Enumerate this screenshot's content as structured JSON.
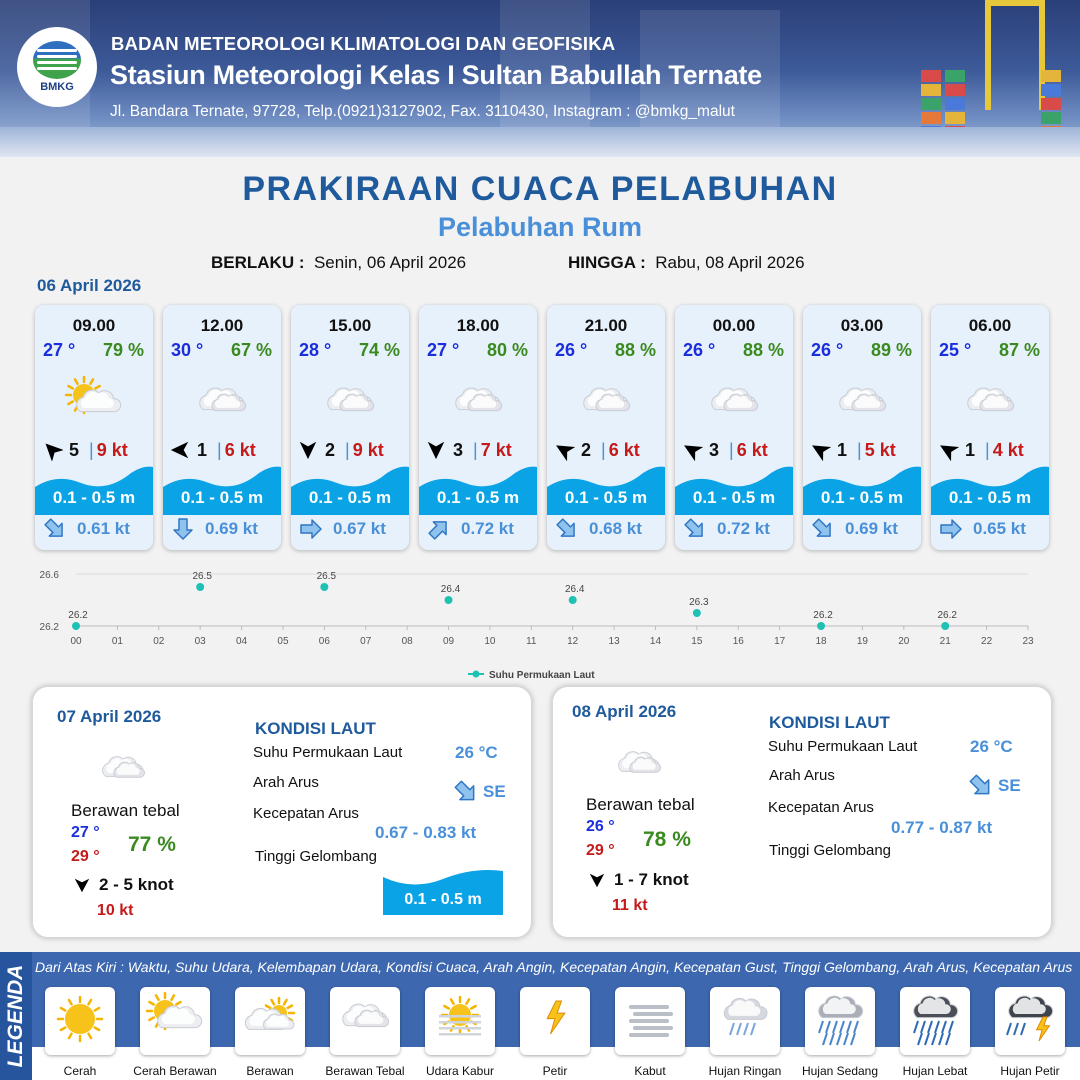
{
  "header": {
    "logo_text": "BMKG",
    "organization": "BADAN METEOROLOGI KLIMATOLOGI DAN GEOFISIKA",
    "station": "Stasiun Meteorologi Kelas I Sultan Babullah Ternate",
    "address": "Jl. Bandara Ternate, 97728, Telp.(0921)3127902, Fax. 3110430, Instagram : @bmkg_malut"
  },
  "title": "PRAKIRAAN CUACA PELABUHAN",
  "subtitle": "Pelabuhan Rum",
  "validity": {
    "from_label": "BERLAKU :",
    "from_value": "Senin, 06 April 2026",
    "to_label": "HINGGA :",
    "to_value": "Rabu, 08 April 2026"
  },
  "day1": {
    "date": "06 April 2026",
    "hours": [
      {
        "time": "09.00",
        "temp": "27 °",
        "hum": "79 %",
        "icon": "partly-cloudy-sun-icon",
        "wind_dir_deg": 315,
        "wind": "5",
        "gust": "9 kt",
        "wave": "0.1 - 0.5 m",
        "current_dir_deg": 135,
        "current": "0.61 kt"
      },
      {
        "time": "12.00",
        "temp": "30 °",
        "hum": "67 %",
        "icon": "thick-cloud-icon",
        "wind_dir_deg": 270,
        "wind": "1",
        "gust": "6 kt",
        "wave": "0.1 - 0.5 m",
        "current_dir_deg": 180,
        "current": "0.69 kt"
      },
      {
        "time": "15.00",
        "temp": "28 °",
        "hum": "74 %",
        "icon": "thick-cloud-icon",
        "wind_dir_deg": 180,
        "wind": "2",
        "gust": "9 kt",
        "wave": "0.1 - 0.5 m",
        "current_dir_deg": 90,
        "current": "0.67 kt"
      },
      {
        "time": "18.00",
        "temp": "27 °",
        "hum": "80 %",
        "icon": "thick-cloud-icon",
        "wind_dir_deg": 180,
        "wind": "3",
        "gust": "7 kt",
        "wave": "0.1 - 0.5 m",
        "current_dir_deg": 45,
        "current": "0.72 kt"
      },
      {
        "time": "21.00",
        "temp": "26 °",
        "hum": "88 %",
        "icon": "thick-cloud-icon",
        "wind_dir_deg": 300,
        "wind": "2",
        "gust": "6 kt",
        "wave": "0.1 - 0.5 m",
        "current_dir_deg": 135,
        "current": "0.68 kt"
      },
      {
        "time": "00.00",
        "temp": "26 °",
        "hum": "88 %",
        "icon": "thick-cloud-icon",
        "wind_dir_deg": 300,
        "wind": "3",
        "gust": "6 kt",
        "wave": "0.1 - 0.5 m",
        "current_dir_deg": 135,
        "current": "0.72 kt"
      },
      {
        "time": "03.00",
        "temp": "26 °",
        "hum": "89 %",
        "icon": "thick-cloud-icon",
        "wind_dir_deg": 300,
        "wind": "1",
        "gust": "5 kt",
        "wave": "0.1 - 0.5 m",
        "current_dir_deg": 135,
        "current": "0.69 kt"
      },
      {
        "time": "06.00",
        "temp": "25 °",
        "hum": "87 %",
        "icon": "thick-cloud-icon",
        "wind_dir_deg": 300,
        "wind": "1",
        "gust": "4 kt",
        "wave": "0.1 - 0.5 m",
        "current_dir_deg": 90,
        "current": "0.65 kt"
      }
    ]
  },
  "chart_data": {
    "type": "scatter",
    "x": [
      "00",
      "01",
      "02",
      "03",
      "04",
      "05",
      "06",
      "07",
      "08",
      "09",
      "10",
      "11",
      "12",
      "13",
      "14",
      "15",
      "16",
      "17",
      "18",
      "19",
      "20",
      "21",
      "22",
      "23"
    ],
    "points": [
      {
        "x": 0,
        "y": 26.2
      },
      {
        "x": 3,
        "y": 26.5
      },
      {
        "x": 6,
        "y": 26.5
      },
      {
        "x": 9,
        "y": 26.4
      },
      {
        "x": 12,
        "y": 26.4
      },
      {
        "x": 15,
        "y": 26.3
      },
      {
        "x": 18,
        "y": 26.2
      },
      {
        "x": 21,
        "y": 26.2
      }
    ],
    "point_labels": [
      "26.2",
      "26.5",
      "26.5",
      "26.4",
      "26.4",
      "26.3",
      "26.2",
      "26.2"
    ],
    "ylim": [
      26.2,
      26.6
    ],
    "yticks": [
      "26.6",
      "26.2"
    ],
    "legend": "Suhu Permukaan Laut",
    "series_color": "#1fc1b4",
    "grid": true
  },
  "day2": {
    "date": "07 April 2026",
    "icon": "thick-cloud-icon",
    "condition": "Berawan tebal",
    "tmin": "27 °",
    "tmax": "29 °",
    "hum": "77 %",
    "wind": "2  - 5 knot",
    "gust": "10 kt",
    "sea_title": "KONDISI LAUT",
    "sst_label": "Suhu Permukaan Laut",
    "sst": "26 °C",
    "current_dir_label": "Arah Arus",
    "current_dir": "SE",
    "current_speed_label": "Kecepatan Arus",
    "current_speed": "0.67  - 0.83 kt",
    "wave_label": "Tinggi Gelombang",
    "wave": "0.1 - 0.5 m"
  },
  "day3": {
    "date": "08 April 2026",
    "icon": "thick-cloud-icon",
    "condition": "Berawan tebal",
    "tmin": "26 °",
    "tmax": "29 °",
    "hum": "78 %",
    "wind": "1  - 7 knot",
    "gust": "11 kt",
    "sea_title": "KONDISI LAUT",
    "sst_label": "Suhu Permukaan Laut",
    "sst": "26 °C",
    "current_dir_label": "Arah Arus",
    "current_dir": "SE",
    "current_speed_label": "Kecepatan Arus",
    "current_speed": "0.77  - 0.87 kt",
    "wave_label": "Tinggi Gelombang"
  },
  "legend": {
    "side_label": "LEGENDA",
    "caption": "Dari Atas Kiri : Waktu, Suhu Udara, Kelembapan Udara, Kondisi Cuaca, Arah Angin, Kecepatan Angin, Kecepatan Gust, Tinggi Gelombang, Arah Arus, Kecepatan Arus",
    "items": [
      {
        "label": "Cerah",
        "icon": "sunny-icon"
      },
      {
        "label": "Cerah Berawan",
        "icon": "partly-cloudy-sun-icon"
      },
      {
        "label": "Berawan",
        "icon": "cloudy-icon"
      },
      {
        "label": "Berawan Tebal",
        "icon": "thick-cloud-icon"
      },
      {
        "label": "Udara Kabur",
        "icon": "haze-icon"
      },
      {
        "label": "Petir",
        "icon": "lightning-icon"
      },
      {
        "label": "Kabut",
        "icon": "fog-icon"
      },
      {
        "label": "Hujan Ringan",
        "icon": "light-rain-icon"
      },
      {
        "label": "Hujan Sedang",
        "icon": "moderate-rain-icon"
      },
      {
        "label": "Hujan Lebat",
        "icon": "heavy-rain-icon"
      },
      {
        "label": "Hujan Petir",
        "icon": "thunderstorm-icon"
      }
    ]
  },
  "colors": {
    "title": "#1f5a9c",
    "subtitle": "#4a90d9",
    "temp": "#1a2ee0",
    "humidity": "#3a8a1f",
    "gust": "#c41a1a",
    "wave": "#0aa3e6",
    "legend_bg": "#3d68b0"
  }
}
